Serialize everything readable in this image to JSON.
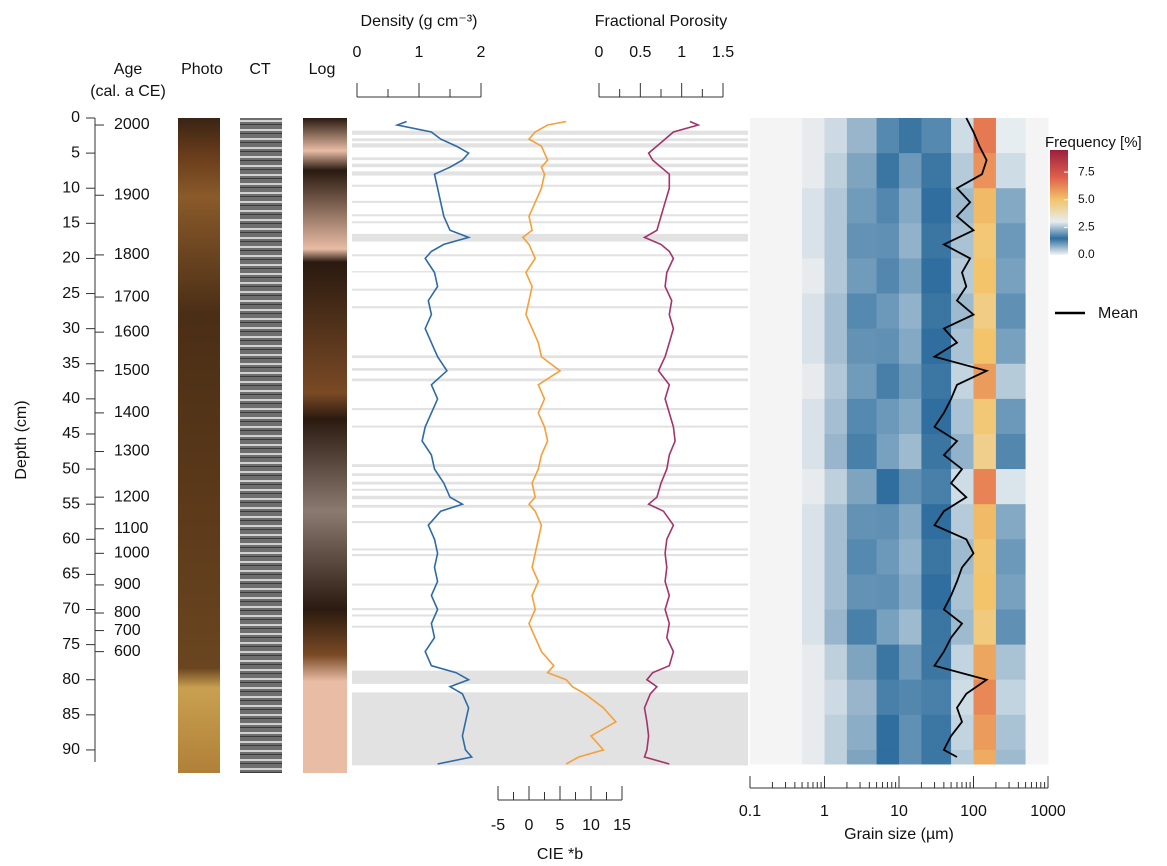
{
  "chart_data": {
    "type": "core-log",
    "ylabel": "Depth (cm)",
    "ylim": [
      0,
      93
    ],
    "yticks": [
      0,
      5,
      10,
      15,
      20,
      25,
      30,
      35,
      40,
      45,
      50,
      55,
      60,
      65,
      70,
      75,
      80,
      85,
      90
    ],
    "age_title": "Age",
    "age_subtitle": "(cal. a CE)",
    "age_values": [
      2000,
      1900,
      1800,
      1700,
      1600,
      1500,
      1400,
      1300,
      1200,
      1100,
      1000,
      900,
      800,
      700,
      600
    ],
    "age_depths": [
      1,
      11,
      19.5,
      25.5,
      30.5,
      36,
      42,
      47.5,
      54,
      58.5,
      62,
      66.5,
      70.5,
      73,
      76
    ],
    "column_titles": [
      "Photo",
      "CT",
      "Log"
    ],
    "gray_bands": [
      [
        1.8,
        2.4
      ],
      [
        2.9,
        3.3
      ],
      [
        3.6,
        4.2
      ],
      [
        5.6,
        6
      ],
      [
        6.5,
        7
      ],
      [
        7.6,
        8.2
      ],
      [
        9.5,
        9.8
      ],
      [
        11.8,
        12.1
      ],
      [
        13.7,
        14
      ],
      [
        14.7,
        15
      ],
      [
        16.5,
        17.6
      ],
      [
        19.4,
        19.7
      ],
      [
        21.8,
        22
      ],
      [
        24.3,
        24.6
      ],
      [
        26.8,
        27.1
      ],
      [
        33.8,
        34.2
      ],
      [
        35.6,
        36
      ],
      [
        37.1,
        37.5
      ],
      [
        41.3,
        41.6
      ],
      [
        43.8,
        44.1
      ],
      [
        49.3,
        49.7
      ],
      [
        50.6,
        51
      ],
      [
        51.8,
        52.2
      ],
      [
        52.8,
        53.1
      ],
      [
        53.8,
        54.3
      ],
      [
        55.1,
        55.5
      ],
      [
        57.4,
        57.7
      ],
      [
        61.3,
        61.6
      ],
      [
        62.1,
        62.4
      ],
      [
        66.3,
        66.6
      ],
      [
        69.8,
        70.1
      ],
      [
        70.7,
        71
      ],
      [
        72.3,
        72.6
      ],
      [
        78.7,
        80.6
      ],
      [
        81.8,
        92.2
      ]
    ],
    "depths": [
      0.5,
      1,
      2,
      3,
      4,
      5,
      6,
      7,
      8,
      10,
      12,
      14,
      16,
      17,
      18,
      19,
      20,
      22,
      24,
      26,
      28,
      30,
      32,
      34,
      36,
      38,
      40,
      42,
      44,
      46,
      48,
      50,
      52,
      54,
      55,
      56,
      58,
      60,
      62,
      64,
      66,
      68,
      70,
      72,
      74,
      76,
      78,
      79,
      80,
      81,
      82,
      84,
      86,
      88,
      90,
      91,
      92
    ],
    "series": [
      {
        "name": "Density (g cm⁻³)",
        "color": "#2e6aa6",
        "axis_side": "top",
        "xlim": [
          0,
          2
        ],
        "xticks": [
          0,
          1,
          2
        ],
        "xminor": [
          0.5,
          1.5
        ],
        "values": [
          0.8,
          0.65,
          1.2,
          1.35,
          1.6,
          1.8,
          1.7,
          1.5,
          1.25,
          1.3,
          1.35,
          1.4,
          1.5,
          1.8,
          1.4,
          1.2,
          1.1,
          1.25,
          1.3,
          1.15,
          1.2,
          1.1,
          1.2,
          1.3,
          1.45,
          1.2,
          1.3,
          1.2,
          1.1,
          1.05,
          1.2,
          1.25,
          1.4,
          1.5,
          1.7,
          1.35,
          1.15,
          1.25,
          1.3,
          1.25,
          1.3,
          1.2,
          1.3,
          1.2,
          1.25,
          1.1,
          1.2,
          1.6,
          1.8,
          1.5,
          1.7,
          1.8,
          1.75,
          1.7,
          1.75,
          1.85,
          1.3
        ]
      },
      {
        "name": "Fractional Porosity",
        "color": "#a3336b",
        "axis_side": "top",
        "xlim": [
          0,
          1.5
        ],
        "xticks": [
          0,
          0.5,
          1,
          1.5
        ],
        "xminor": [
          0.25,
          0.75,
          1.25
        ],
        "values": [
          1.1,
          1.2,
          0.9,
          0.8,
          0.7,
          0.6,
          0.65,
          0.75,
          0.85,
          0.85,
          0.8,
          0.75,
          0.7,
          0.55,
          0.75,
          0.85,
          0.9,
          0.82,
          0.8,
          0.88,
          0.85,
          0.9,
          0.85,
          0.8,
          0.72,
          0.85,
          0.8,
          0.85,
          0.9,
          0.92,
          0.85,
          0.82,
          0.75,
          0.7,
          0.6,
          0.78,
          0.9,
          0.82,
          0.8,
          0.82,
          0.8,
          0.85,
          0.8,
          0.85,
          0.82,
          0.9,
          0.85,
          0.65,
          0.58,
          0.7,
          0.62,
          0.55,
          0.58,
          0.6,
          0.58,
          0.55,
          0.85
        ]
      },
      {
        "name": "CIE *b",
        "color": "#f5a03a",
        "axis_side": "bottom",
        "xlim": [
          -5,
          15
        ],
        "xticks": [
          -5,
          0,
          5,
          10,
          15
        ],
        "xminor": [
          -2.5,
          2.5,
          7.5,
          12.5
        ],
        "values": [
          6,
          3,
          1,
          0,
          2,
          2.5,
          3,
          2,
          2.5,
          2,
          1,
          0,
          0.5,
          -1,
          0,
          0.5,
          1,
          -0.5,
          0.5,
          0,
          -0.5,
          0.5,
          1.5,
          2,
          5,
          1.5,
          2.5,
          1.5,
          2.5,
          3,
          2,
          1.5,
          0.5,
          1,
          0,
          1,
          2,
          1.5,
          1,
          0.5,
          1.5,
          0.5,
          1,
          0,
          1,
          2,
          4,
          3,
          6,
          7,
          9,
          12,
          14,
          10,
          12,
          8,
          6
        ]
      }
    ],
    "grain": {
      "xlabel": "Grain size (µm)",
      "log": true,
      "xlim": [
        0.1,
        1000
      ],
      "xticks": [
        0.1,
        1,
        10,
        100,
        1000
      ],
      "xminor": [
        0.2,
        0.3,
        0.4,
        0.5,
        0.6,
        0.7,
        0.8,
        0.9,
        2,
        3,
        4,
        5,
        6,
        7,
        8,
        9,
        20,
        30,
        40,
        50,
        60,
        70,
        80,
        90,
        200,
        300,
        400,
        500,
        600,
        700,
        800,
        900
      ],
      "bins": [
        0.1,
        0.2,
        0.5,
        1,
        2,
        5,
        10,
        20,
        50,
        100,
        200,
        500,
        1000
      ],
      "row_edges": [
        0,
        5,
        10,
        15,
        20,
        25,
        30,
        35,
        40,
        45,
        50,
        55,
        60,
        65,
        70,
        75,
        80,
        85,
        90,
        92
      ],
      "frequency": [
        [
          0,
          0,
          0.1,
          0.3,
          0.7,
          1.2,
          1.6,
          1.2,
          2.8,
          6.5,
          3.0,
          0
        ],
        [
          0,
          0,
          0.1,
          0.4,
          0.9,
          1.6,
          2.0,
          1.4,
          2.6,
          6.0,
          2.8,
          0
        ],
        [
          0,
          0,
          0.2,
          0.5,
          1.0,
          1.8,
          2.2,
          1.5,
          2.4,
          5.2,
          2.2,
          0
        ],
        [
          0,
          0,
          0.2,
          0.5,
          1.1,
          1.9,
          2.3,
          1.6,
          2.5,
          4.8,
          2.0,
          0
        ],
        [
          0,
          0,
          0.1,
          0.5,
          1.0,
          1.8,
          2.1,
          1.5,
          2.6,
          5.0,
          2.1,
          0
        ],
        [
          0,
          0,
          0.2,
          0.6,
          1.2,
          2.0,
          2.3,
          1.6,
          2.4,
          4.6,
          1.9,
          0
        ],
        [
          0,
          0,
          0.2,
          0.6,
          1.1,
          1.9,
          2.2,
          1.5,
          2.5,
          5.0,
          2.1,
          0
        ],
        [
          0,
          0,
          0.1,
          0.5,
          1.0,
          1.7,
          2.0,
          1.4,
          2.7,
          5.8,
          2.6,
          0
        ],
        [
          0,
          0,
          0.2,
          0.6,
          1.2,
          2.0,
          2.2,
          1.5,
          2.5,
          4.8,
          2.0,
          0
        ],
        [
          0,
          0,
          0.2,
          0.7,
          1.3,
          2.1,
          2.4,
          1.6,
          2.3,
          4.5,
          1.8,
          0
        ],
        [
          0,
          0,
          0.1,
          0.4,
          0.9,
          1.5,
          1.9,
          1.3,
          2.8,
          6.3,
          2.9,
          0
        ],
        [
          0,
          0,
          0.2,
          0.6,
          1.1,
          1.9,
          2.2,
          1.5,
          2.6,
          5.2,
          2.2,
          0
        ],
        [
          0,
          0,
          0.2,
          0.6,
          1.2,
          2.0,
          2.3,
          1.6,
          2.4,
          4.9,
          2.0,
          0
        ],
        [
          0,
          0,
          0.2,
          0.6,
          1.1,
          1.9,
          2.2,
          1.5,
          2.5,
          5.0,
          2.1,
          0
        ],
        [
          0,
          0,
          0.2,
          0.7,
          1.3,
          2.1,
          2.4,
          1.6,
          2.4,
          4.7,
          1.9,
          0
        ],
        [
          0,
          0,
          0.1,
          0.4,
          0.9,
          1.6,
          2.0,
          1.4,
          2.7,
          5.6,
          2.5,
          0
        ],
        [
          0,
          0,
          0.1,
          0.3,
          0.7,
          1.3,
          1.8,
          1.3,
          2.8,
          6.2,
          2.7,
          0
        ],
        [
          0,
          0,
          0.1,
          0.4,
          0.8,
          1.5,
          1.9,
          1.4,
          2.7,
          5.8,
          2.5,
          0
        ],
        [
          0,
          0,
          0.1,
          0.4,
          0.9,
          1.5,
          1.9,
          1.4,
          2.6,
          5.5,
          2.4,
          0
        ]
      ],
      "colorbar_title": "Frequency [%]",
      "colorbar_lim": [
        0,
        9.5
      ],
      "colorbar_ticks": [
        {
          "value": 0,
          "label": "0.0"
        },
        {
          "value": 2.5,
          "label": "2.5"
        },
        {
          "value": 5,
          "label": "5.0"
        },
        {
          "value": 7.5,
          "label": "7.5"
        }
      ],
      "colorscale": [
        [
          0,
          "#f4f4f4"
        ],
        [
          1.5,
          "#2f6e9e"
        ],
        [
          3,
          "#e6edf0"
        ],
        [
          5,
          "#f3c46a"
        ],
        [
          7,
          "#e0604a"
        ],
        [
          9.5,
          "#9b1f3e"
        ]
      ],
      "mean": {
        "name": "Mean",
        "color": "#000000",
        "depths": [
          0,
          2,
          4,
          6,
          8,
          10,
          12,
          14,
          16,
          18,
          20,
          22,
          24,
          26,
          28,
          30,
          32,
          34,
          36,
          38,
          40,
          42,
          44,
          46,
          48,
          50,
          52,
          54,
          56,
          58,
          60,
          62,
          64,
          66,
          68,
          70,
          72,
          74,
          76,
          78,
          80,
          82,
          84,
          86,
          88,
          90,
          91
        ],
        "values": [
          80,
          100,
          120,
          150,
          130,
          60,
          90,
          60,
          100,
          40,
          90,
          70,
          80,
          60,
          100,
          40,
          60,
          30,
          150,
          60,
          50,
          40,
          30,
          60,
          40,
          70,
          50,
          80,
          40,
          30,
          80,
          100,
          70,
          60,
          50,
          40,
          70,
          50,
          40,
          30,
          150,
          80,
          60,
          70,
          50,
          40,
          60
        ]
      }
    }
  }
}
